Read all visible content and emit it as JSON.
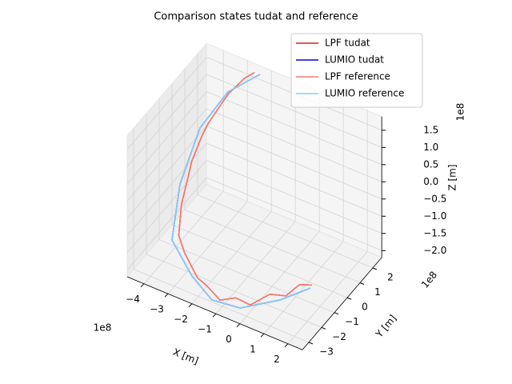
{
  "chart_data": {
    "type": "line3d",
    "title": "Comparison states tudat and reference",
    "xlabel": "X [m]",
    "ylabel": "Y [m]",
    "zlabel": "Z [m]",
    "x_offset_label": "1e8",
    "y_offset_label": "1e8",
    "z_offset_label": "1e8",
    "xlim": [
      -4.7,
      2.6
    ],
    "ylim": [
      -3.5,
      2.7
    ],
    "zlim": [
      -2.2,
      1.9
    ],
    "xticks": [
      {
        "value": -4,
        "label": "−4"
      },
      {
        "value": -3,
        "label": "−3"
      },
      {
        "value": -2,
        "label": "−2"
      },
      {
        "value": -1,
        "label": "−1"
      },
      0,
      1,
      2
    ],
    "yticks": [
      {
        "value": -3,
        "label": "−3"
      },
      {
        "value": -2,
        "label": "−2"
      },
      {
        "value": -1,
        "label": "−1"
      },
      0,
      1,
      2
    ],
    "zticks": [
      {
        "value": -2.0,
        "label": "−2.0"
      },
      {
        "value": -1.5,
        "label": "−1.5"
      },
      {
        "value": -1.0,
        "label": "−1.0"
      },
      {
        "value": -0.5,
        "label": "−0.5"
      },
      {
        "value": 0,
        "label": "0.0"
      },
      0.5,
      {
        "value": 1.0,
        "label": "1.0"
      },
      1.5
    ],
    "grid": true,
    "legend_loc": "upper right",
    "series": [
      {
        "name": "LPF tudat",
        "color": "#e41a1c",
        "x": [
          1.5,
          1.2,
          0.9,
          0.5,
          0.0,
          -0.5,
          -1.1,
          -1.7,
          -2.2,
          -2.9,
          -3.3,
          -3.4,
          -3.35,
          -3.5,
          -3.4,
          -3.45,
          -3.2,
          -3.2,
          -2.8,
          -2.6
        ],
        "y": [
          -0.7,
          -1.1,
          -1.6,
          -2.1,
          -2.7,
          -2.9,
          -3.0,
          -2.9,
          -2.7,
          -2.4,
          -2.1,
          -1.7,
          -1.3,
          -0.7,
          -0.1,
          0.5,
          1.1,
          1.6,
          2.1,
          2.5
        ],
        "z": [
          -1.85,
          -1.75,
          -1.95,
          -1.8,
          -2.0,
          -1.85,
          -2.05,
          -1.85,
          -1.85,
          -1.45,
          -1.2,
          -0.5,
          0.1,
          0.3,
          0.8,
          0.9,
          1.3,
          1.35,
          1.7,
          1.75
        ]
      },
      {
        "name": "LUMIO tudat",
        "color": "#0000e0",
        "x": [
          1.49,
          0.78,
          -0.23,
          -1.4,
          -2.37,
          -3.48,
          -3.53,
          -3.67,
          -3.31,
          -2.43
        ],
        "y": [
          -0.79,
          -1.84,
          -3.06,
          -3.07,
          -2.81,
          -2.29,
          -1.57,
          0.25,
          1.76,
          2.61
        ],
        "z": [
          -1.9,
          -2.0,
          -2.0,
          -2.1,
          -1.8,
          -1.3,
          0,
          0.8,
          1.3,
          1.7
        ]
      },
      {
        "name": "LPF reference",
        "color": "#f47a6b",
        "x": [
          1.5,
          1.2,
          0.9,
          0.5,
          0.0,
          -0.5,
          -1.1,
          -1.7,
          -2.2,
          -2.9,
          -3.3,
          -3.4,
          -3.35,
          -3.5,
          -3.4,
          -3.45,
          -3.2,
          -3.2,
          -2.8,
          -2.6
        ],
        "y": [
          -0.7,
          -1.1,
          -1.6,
          -2.1,
          -2.7,
          -2.9,
          -3.0,
          -2.9,
          -2.7,
          -2.4,
          -2.1,
          -1.7,
          -1.3,
          -0.7,
          -0.1,
          0.5,
          1.1,
          1.6,
          2.1,
          2.5
        ],
        "z": [
          -1.85,
          -1.75,
          -1.95,
          -1.8,
          -2.0,
          -1.85,
          -2.05,
          -1.85,
          -1.85,
          -1.45,
          -1.2,
          -0.5,
          0.1,
          0.3,
          0.8,
          0.9,
          1.3,
          1.35,
          1.7,
          1.75
        ]
      },
      {
        "name": "LUMIO reference",
        "color": "#87cefa",
        "x": [
          1.49,
          0.78,
          -0.23,
          -1.4,
          -2.37,
          -3.48,
          -3.53,
          -3.67,
          -3.31,
          -2.43
        ],
        "y": [
          -0.79,
          -1.84,
          -3.06,
          -3.07,
          -2.81,
          -2.29,
          -1.57,
          0.25,
          1.76,
          2.61
        ],
        "z": [
          -1.9,
          -2.0,
          -2.0,
          -2.1,
          -1.8,
          -1.3,
          0,
          0.8,
          1.3,
          1.7
        ]
      }
    ]
  }
}
